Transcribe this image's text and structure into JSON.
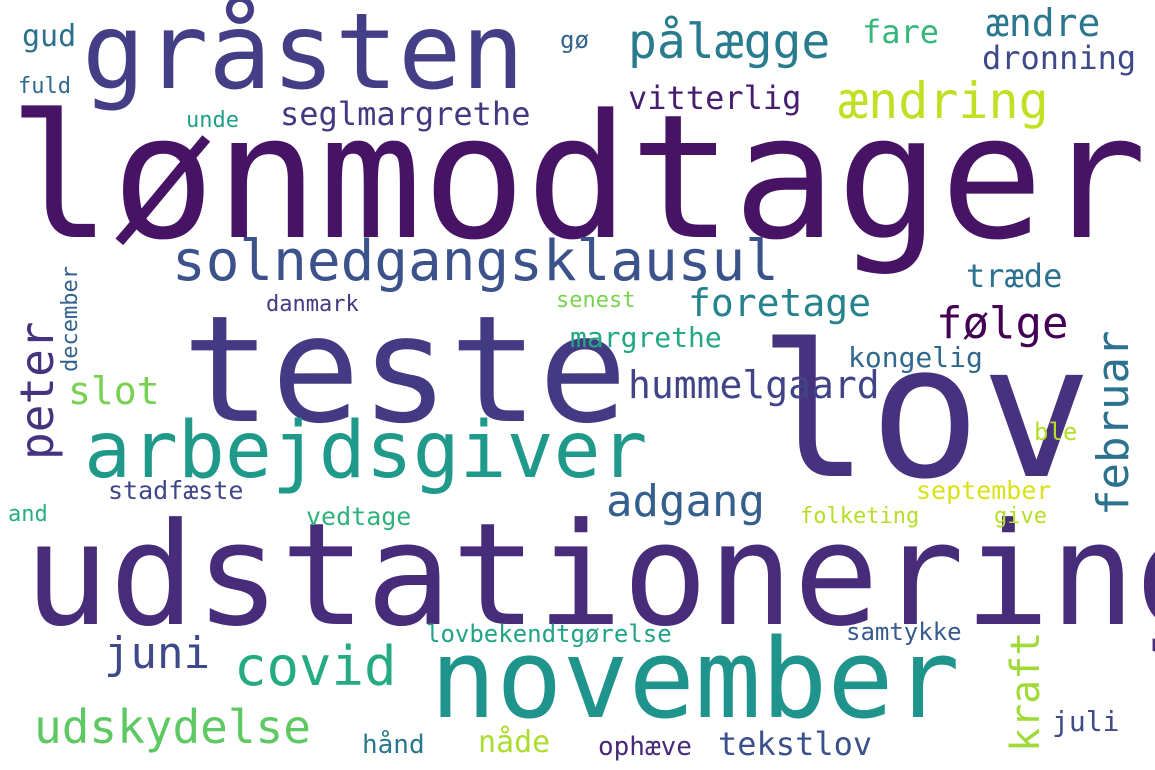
{
  "cloud": {
    "words": [
      {
        "text": "lønmodtager",
        "color": "#471365"
      },
      {
        "text": "udstationering",
        "color": "#472c7a"
      },
      {
        "text": "teste",
        "color": "#443a83"
      },
      {
        "text": "lov",
        "color": "#46327e"
      },
      {
        "text": "november",
        "color": "#1f948c"
      },
      {
        "text": "gråsten",
        "color": "#433e85"
      },
      {
        "text": "arbejdsgiver",
        "color": "#1f9a8a"
      },
      {
        "text": "solnedgangsklausul",
        "color": "#3b528b"
      },
      {
        "text": "pålægge",
        "color": "#287c8e"
      },
      {
        "text": "ændring",
        "color": "#c2df23"
      },
      {
        "text": "covid",
        "color": "#25ab82"
      },
      {
        "text": "udskydelse",
        "color": "#5ec962"
      },
      {
        "text": "foretage",
        "color": "#25838e"
      },
      {
        "text": "adgang",
        "color": "#355f8d"
      },
      {
        "text": "juni",
        "color": "#3e4989"
      },
      {
        "text": "hummelgaard",
        "color": "#414487"
      },
      {
        "text": "februar",
        "color": "#2c718e"
      },
      {
        "text": "peter",
        "color": "#46337f"
      },
      {
        "text": "følge",
        "color": "#440154"
      },
      {
        "text": "kraft",
        "color": "#a0da39"
      },
      {
        "text": "tekstlov",
        "color": "#3b518b"
      },
      {
        "text": "ændre",
        "color": "#2a778e"
      },
      {
        "text": "vitterlig",
        "color": "#481c6e"
      },
      {
        "text": "seglmargrethe",
        "color": "#453781"
      },
      {
        "text": "dronning",
        "color": "#3f4889"
      },
      {
        "text": "fare",
        "color": "#35b779"
      },
      {
        "text": "slot",
        "color": "#7ad151"
      },
      {
        "text": "træde",
        "color": "#2c728e"
      },
      {
        "text": "margrethe",
        "color": "#22a884"
      },
      {
        "text": "kongelig",
        "color": "#31688e"
      },
      {
        "text": "danmark",
        "color": "#453882"
      },
      {
        "text": "senest",
        "color": "#7ad151"
      },
      {
        "text": "september",
        "color": "#d8e219"
      },
      {
        "text": "stadfæste",
        "color": "#3f4788"
      },
      {
        "text": "vedtage",
        "color": "#2db27d"
      },
      {
        "text": "folketing",
        "color": "#b5de2b"
      },
      {
        "text": "give",
        "color": "#b5de2b"
      },
      {
        "text": "ble",
        "color": "#b5de2b"
      },
      {
        "text": "lovbekendtgørelse",
        "color": "#20a386"
      },
      {
        "text": "samtykke",
        "color": "#375b8d"
      },
      {
        "text": "juli",
        "color": "#3e4a89"
      },
      {
        "text": "nåde",
        "color": "#addc30"
      },
      {
        "text": "ophæve",
        "color": "#482878"
      },
      {
        "text": "hånd",
        "color": "#2a788e"
      },
      {
        "text": "and",
        "color": "#29af7f"
      },
      {
        "text": "gud",
        "color": "#2d708e"
      },
      {
        "text": "gø",
        "color": "#33638d"
      },
      {
        "text": "fuld",
        "color": "#31688e"
      },
      {
        "text": "unde",
        "color": "#1fa188"
      },
      {
        "text": "december",
        "color": "#33628d"
      }
    ]
  }
}
